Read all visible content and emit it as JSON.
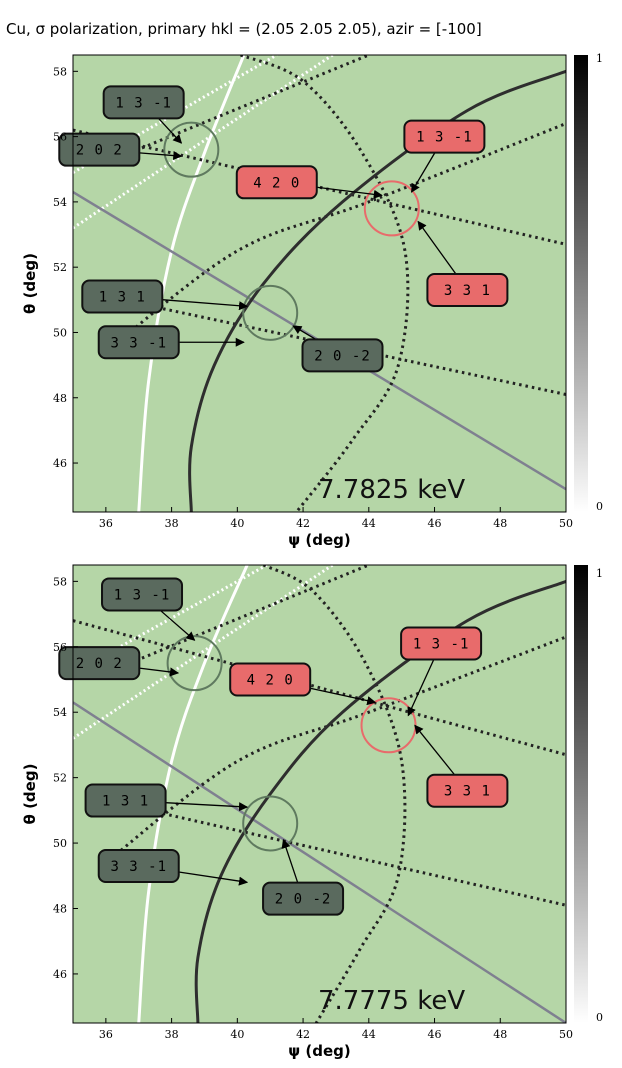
{
  "title": "Cu, σ polarization, primary hkl = (2.05 2.05 2.05), azir = [-100]",
  "colors": {
    "background": "#b5d6a7",
    "dark_box": "#5a6a5e",
    "red_box": "#e86b6b",
    "red_circle": "#e86b6b",
    "gray_circle": "#5f7a5f"
  },
  "colorbar": {
    "min_label": "0",
    "max_label": "1"
  },
  "chart_data": [
    {
      "type": "line",
      "annotation": "7.7825 keV",
      "xlabel": "ψ (deg)",
      "ylabel": "θ (deg)",
      "xlim": [
        35,
        50
      ],
      "ylim": [
        44.5,
        58.5
      ],
      "xticks": [
        "36",
        "38",
        "40",
        "42",
        "44",
        "46",
        "48",
        "50"
      ],
      "yticks": [
        "46",
        "48",
        "50",
        "52",
        "54",
        "56",
        "58"
      ],
      "labels": [
        {
          "text": "1 3 -1",
          "style": "dark",
          "box": [
            37.15,
            57.05
          ],
          "arrow": [
            38.3,
            55.8
          ]
        },
        {
          "text": "2 0 2",
          "style": "dark",
          "box": [
            35.8,
            55.6
          ],
          "arrow": [
            38.3,
            55.4
          ]
        },
        {
          "text": "4 2 0",
          "style": "red",
          "box": [
            41.2,
            54.6
          ],
          "arrow": [
            44.4,
            54.2
          ]
        },
        {
          "text": "1 3 -1",
          "style": "red",
          "box": [
            46.3,
            56.0
          ],
          "arrow": [
            45.3,
            54.3
          ]
        },
        {
          "text": "3 3 1",
          "style": "red",
          "box": [
            47.0,
            51.3
          ],
          "arrow": [
            45.5,
            53.4
          ]
        },
        {
          "text": "1 3 1",
          "style": "dark",
          "box": [
            36.5,
            51.1
          ],
          "arrow": [
            40.3,
            50.8
          ]
        },
        {
          "text": "3 3 -1",
          "style": "dark",
          "box": [
            37.0,
            49.7
          ],
          "arrow": [
            40.2,
            49.7
          ]
        },
        {
          "text": "2 0 -2",
          "style": "dark",
          "box": [
            43.2,
            49.3
          ],
          "arrow": [
            41.7,
            50.2
          ]
        }
      ],
      "circles": [
        {
          "x": 38.6,
          "y": 55.6,
          "color": "gray"
        },
        {
          "x": 41.0,
          "y": 50.6,
          "color": "gray"
        },
        {
          "x": 44.7,
          "y": 53.8,
          "color": "red"
        }
      ],
      "series": [
        {
          "style": "white-solid",
          "points": [
            [
              37.0,
              44.5
            ],
            [
              37.3,
              48.5
            ],
            [
              38.0,
              52.5
            ],
            [
              39.0,
              55.5
            ],
            [
              40.2,
              58.5
            ]
          ]
        },
        {
          "style": "white-dotted",
          "points": [
            [
              35.0,
              53.2
            ],
            [
              42.9,
              58.5
            ]
          ]
        },
        {
          "style": "white-dotted",
          "points": [
            [
              35.0,
              54.9
            ],
            [
              41.2,
              58.5
            ]
          ]
        },
        {
          "style": "gray-solid",
          "points": [
            [
              35.0,
              54.3
            ],
            [
              50.0,
              45.2
            ]
          ]
        },
        {
          "style": "black-dotted",
          "points": [
            [
              35.0,
              56.2
            ],
            [
              50.0,
              52.7
            ]
          ]
        },
        {
          "style": "black-dotted",
          "points": [
            [
              36.0,
              51.1
            ],
            [
              50.0,
              48.1
            ]
          ]
        },
        {
          "style": "black-dotted",
          "points": [
            [
              36.0,
              55.2
            ],
            [
              44.0,
              58.5
            ]
          ]
        },
        {
          "style": "black-dotted",
          "points": [
            [
              36.0,
              49.4
            ],
            [
              40.0,
              52.5
            ],
            [
              44.0,
              54.0
            ],
            [
              50.0,
              56.4
            ]
          ]
        },
        {
          "style": "black-dotted",
          "points": [
            [
              40.1,
              58.5
            ],
            [
              42.0,
              57.7
            ],
            [
              43.8,
              55.5
            ],
            [
              45.1,
              52.5
            ],
            [
              44.9,
              49.0
            ],
            [
              43.5,
              46.7
            ],
            [
              41.8,
              44.5
            ]
          ]
        },
        {
          "style": "black-solid",
          "points": [
            [
              38.6,
              44.5
            ],
            [
              38.6,
              46.5
            ],
            [
              39.3,
              49.0
            ],
            [
              40.8,
              51.5
            ],
            [
              43.2,
              54.0
            ],
            [
              47.0,
              56.8
            ],
            [
              50.0,
              58.0
            ]
          ]
        }
      ]
    },
    {
      "type": "line",
      "annotation": "7.7775 keV",
      "xlabel": "ψ (deg)",
      "ylabel": "θ (deg)",
      "xlim": [
        35,
        50
      ],
      "ylim": [
        44.5,
        58.5
      ],
      "xticks": [
        "36",
        "38",
        "40",
        "42",
        "44",
        "46",
        "48",
        "50"
      ],
      "yticks": [
        "46",
        "48",
        "50",
        "52",
        "54",
        "56",
        "58"
      ],
      "labels": [
        {
          "text": "1 3 -1",
          "style": "dark",
          "box": [
            37.1,
            57.6
          ],
          "arrow": [
            38.7,
            56.2
          ]
        },
        {
          "text": "2 0 2",
          "style": "dark",
          "box": [
            35.8,
            55.5
          ],
          "arrow": [
            38.2,
            55.2
          ]
        },
        {
          "text": "4 2 0",
          "style": "red",
          "box": [
            41.0,
            55.0
          ],
          "arrow": [
            44.2,
            54.3
          ]
        },
        {
          "text": "1 3 -1",
          "style": "red",
          "box": [
            46.2,
            56.1
          ],
          "arrow": [
            45.2,
            53.9
          ]
        },
        {
          "text": "3 3 1",
          "style": "red",
          "box": [
            47.0,
            51.6
          ],
          "arrow": [
            45.4,
            53.6
          ]
        },
        {
          "text": "1 3 1",
          "style": "dark",
          "box": [
            36.6,
            51.3
          ],
          "arrow": [
            40.3,
            51.1
          ]
        },
        {
          "text": "3 3 -1",
          "style": "dark",
          "box": [
            37.0,
            49.3
          ],
          "arrow": [
            40.3,
            48.8
          ]
        },
        {
          "text": "2 0 -2",
          "style": "dark",
          "box": [
            42.0,
            48.3
          ],
          "arrow": [
            41.4,
            50.1
          ]
        }
      ],
      "circles": [
        {
          "x": 38.7,
          "y": 55.5,
          "color": "gray"
        },
        {
          "x": 41.0,
          "y": 50.6,
          "color": "gray"
        },
        {
          "x": 44.6,
          "y": 53.6,
          "color": "red"
        }
      ],
      "series": [
        {
          "style": "white-solid",
          "points": [
            [
              37.0,
              44.5
            ],
            [
              37.3,
              48.5
            ],
            [
              38.0,
              52.5
            ],
            [
              39.0,
              55.5
            ],
            [
              40.3,
              58.5
            ]
          ]
        },
        {
          "style": "white-dotted",
          "points": [
            [
              35.0,
              53.2
            ],
            [
              42.9,
              58.5
            ]
          ]
        },
        {
          "style": "white-dotted",
          "points": [
            [
              35.0,
              55.2
            ],
            [
              40.9,
              58.5
            ]
          ]
        },
        {
          "style": "gray-solid",
          "points": [
            [
              35.0,
              54.3
            ],
            [
              50.0,
              44.5
            ]
          ]
        },
        {
          "style": "black-dotted",
          "points": [
            [
              35.0,
              56.8
            ],
            [
              50.0,
              52.7
            ]
          ]
        },
        {
          "style": "black-dotted",
          "points": [
            [
              36.0,
              51.3
            ],
            [
              50.0,
              48.1
            ]
          ]
        },
        {
          "style": "black-dotted",
          "points": [
            [
              36.0,
              55.2
            ],
            [
              44.0,
              58.5
            ]
          ]
        },
        {
          "style": "black-dotted",
          "points": [
            [
              36.0,
              49.4
            ],
            [
              40.0,
              52.5
            ],
            [
              44.0,
              54.0
            ],
            [
              50.0,
              56.3
            ]
          ]
        },
        {
          "style": "black-dotted",
          "points": [
            [
              40.8,
              58.5
            ],
            [
              42.3,
              57.7
            ],
            [
              43.9,
              55.5
            ],
            [
              45.0,
              52.5
            ],
            [
              44.9,
              49.0
            ],
            [
              43.7,
              46.7
            ],
            [
              42.4,
              44.5
            ]
          ]
        },
        {
          "style": "black-solid",
          "points": [
            [
              38.8,
              44.5
            ],
            [
              38.8,
              46.5
            ],
            [
              39.5,
              49.0
            ],
            [
              41.0,
              51.5
            ],
            [
              43.2,
              54.0
            ],
            [
              47.0,
              56.8
            ],
            [
              50.0,
              58.0
            ]
          ]
        }
      ]
    }
  ]
}
